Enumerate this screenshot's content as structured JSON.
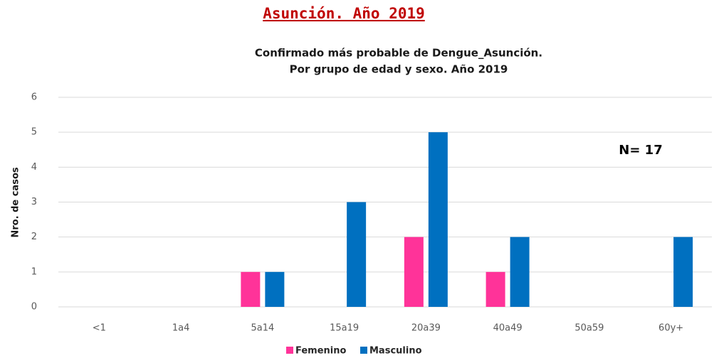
{
  "chart_data": {
    "type": "bar",
    "suptitle": "Asunción. Año 2019",
    "title": [
      "Confirmado más probable de Dengue_Asunción.",
      "Por grupo de edad y sexo. Año 2019"
    ],
    "ylabel": "Nro. de casos",
    "annotation": "N= 17",
    "categories": [
      "<1",
      "1a4",
      "5a14",
      "15a19",
      "20a39",
      "40a49",
      "50a59",
      "60y+"
    ],
    "series": [
      {
        "name": "Femenino",
        "color": "#ff3399",
        "values": [
          0,
          0,
          1,
          0,
          2,
          1,
          0,
          0
        ]
      },
      {
        "name": "Masculino",
        "color": "#0070c0",
        "values": [
          0,
          0,
          1,
          3,
          5,
          2,
          0,
          2
        ]
      }
    ],
    "ylim": [
      0,
      6
    ],
    "yticks": [
      0,
      1,
      2,
      3,
      4,
      5,
      6
    ],
    "grid": true,
    "legend": "bottom"
  }
}
